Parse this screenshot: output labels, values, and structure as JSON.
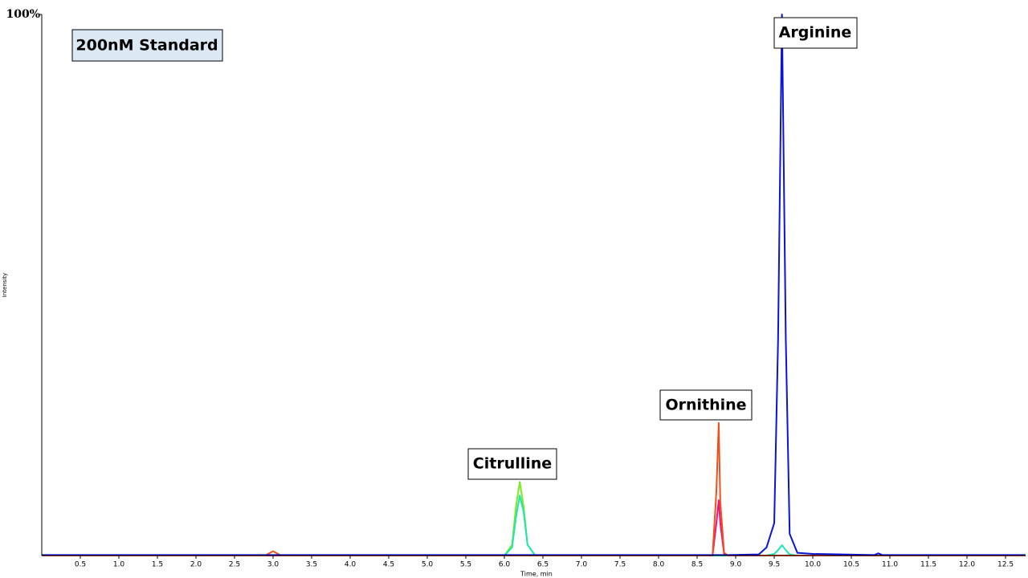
{
  "chart_data": {
    "type": "line",
    "title": "200nM Standard",
    "annotations": [
      "Citrulline",
      "Ornithine",
      "Arginine"
    ],
    "xlabel": "Time, min",
    "ylabel": "Intensity",
    "xlim": [
      0,
      12.76
    ],
    "ylim": [
      0,
      100
    ],
    "yticks": [
      {
        "value": 100,
        "label": "100%"
      }
    ],
    "xticks": [
      0.5,
      {
        "value": 1,
        "label": "1.0"
      },
      1.5,
      {
        "value": 2,
        "label": "2.0"
      },
      2.5,
      {
        "value": 3,
        "label": "3.0"
      },
      3.5,
      {
        "value": 4,
        "label": "4.0"
      },
      4.5,
      {
        "value": 5,
        "label": "5.0"
      },
      5.5,
      {
        "value": 6,
        "label": "6.0"
      },
      6.5,
      {
        "value": 7,
        "label": "7.0"
      },
      7.5,
      {
        "value": 8,
        "label": "8.0"
      },
      8.5,
      {
        "value": 9,
        "label": "9.0"
      },
      9.5,
      {
        "value": 10,
        "label": "10.0"
      },
      10.5,
      {
        "value": 11,
        "label": "11.0"
      },
      11.5,
      {
        "value": 12,
        "label": "12.0"
      },
      12.5
    ],
    "x": [
      0,
      2.9,
      3.0,
      3.1,
      6.0,
      6.1,
      6.15,
      6.2,
      6.25,
      6.3,
      6.4,
      8.6,
      8.7,
      8.75,
      8.78,
      8.8,
      8.85,
      8.9,
      9.3,
      9.4,
      9.5,
      9.55,
      9.6,
      9.65,
      9.7,
      9.8,
      10.0,
      10.8,
      10.85,
      10.9,
      12.76
    ],
    "series": [
      {
        "color": "#7ce81e",
        "values": [
          0,
          0,
          0,
          0,
          0,
          2,
          9,
          13.6,
          9,
          2,
          0,
          0,
          0,
          0,
          0,
          0,
          0,
          0,
          0,
          0,
          0,
          0,
          0,
          0,
          0,
          0,
          0,
          0,
          0,
          0,
          0
        ]
      },
      {
        "color": "#1ee6b4",
        "values": [
          0,
          0,
          0,
          0,
          0,
          1.5,
          7,
          11.1,
          8,
          2,
          0,
          0,
          0,
          0,
          0,
          0,
          0,
          0,
          0,
          0,
          0.3,
          1,
          1.9,
          1,
          0.2,
          0,
          0,
          0,
          0,
          0,
          0
        ]
      },
      {
        "color": "#f0147a",
        "values": [
          0,
          0,
          0,
          0,
          0,
          0,
          0,
          0,
          0,
          0,
          0,
          0,
          0,
          6,
          10.2,
          6,
          0.3,
          0,
          0,
          0,
          0,
          0,
          0,
          0,
          0,
          0,
          0,
          0,
          0,
          0,
          0
        ]
      },
      {
        "color": "#f0501e",
        "values": [
          0,
          0,
          0.8,
          0,
          0,
          0,
          0,
          0,
          0,
          0,
          0,
          0,
          0,
          12,
          24.5,
          10,
          0.5,
          0,
          0,
          0,
          0,
          0,
          0,
          0,
          0,
          0,
          0,
          0,
          0,
          0,
          0
        ]
      },
      {
        "color": "#0a14d6",
        "values": [
          0.1,
          0.1,
          0.1,
          0.1,
          0.1,
          0.1,
          0.1,
          0.1,
          0.1,
          0.1,
          0.1,
          0.1,
          0.1,
          0.1,
          0.1,
          0.1,
          0.1,
          0.1,
          0.2,
          1.5,
          6,
          40,
          100,
          40,
          4,
          0.5,
          0.3,
          0.1,
          0.4,
          0.1,
          0.1
        ]
      }
    ]
  }
}
